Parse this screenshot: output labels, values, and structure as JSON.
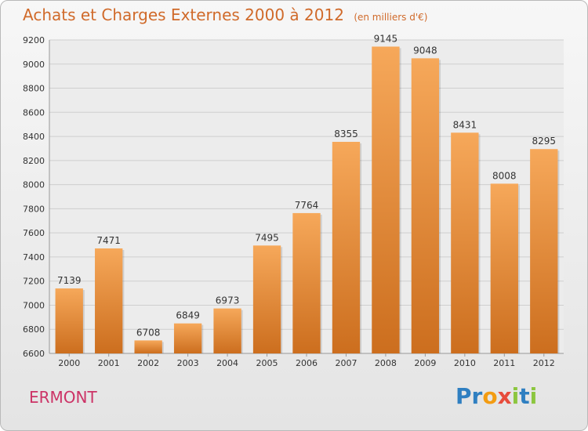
{
  "header": {
    "title": "Achats et Charges Externes 2000 à 2012",
    "subtitle": "(en milliers d'€)"
  },
  "footer": {
    "town": "ERMONT",
    "logo_letters": [
      "P",
      "r",
      "o",
      "x",
      "i",
      "t",
      "i"
    ],
    "logo_colors": [
      "#2f7fc1",
      "#2f7fc1",
      "#f39c12",
      "#e74c3c",
      "#8cc63f",
      "#2f7fc1",
      "#8cc63f"
    ]
  },
  "chart_data": {
    "type": "bar",
    "title": "Achats et Charges Externes 2000 à 2012",
    "subtitle": "(en milliers d'€)",
    "categories": [
      "2000",
      "2001",
      "2002",
      "2003",
      "2004",
      "2005",
      "2006",
      "2007",
      "2008",
      "2009",
      "2010",
      "2011",
      "2012"
    ],
    "values": [
      7139,
      7471,
      6708,
      6849,
      6973,
      7495,
      7764,
      8355,
      9145,
      9048,
      8431,
      8008,
      8295
    ],
    "ylim": [
      6600,
      9200
    ],
    "yticks": [
      6600,
      6800,
      7000,
      7200,
      7400,
      7600,
      7800,
      8000,
      8200,
      8400,
      8600,
      8800,
      9000,
      9200
    ],
    "grid": true,
    "colors": {
      "bar_top": "#f6a85a",
      "bar_bottom": "#cc6e1e",
      "grid": "#cfcfcf",
      "axis_text": "#333333"
    }
  }
}
